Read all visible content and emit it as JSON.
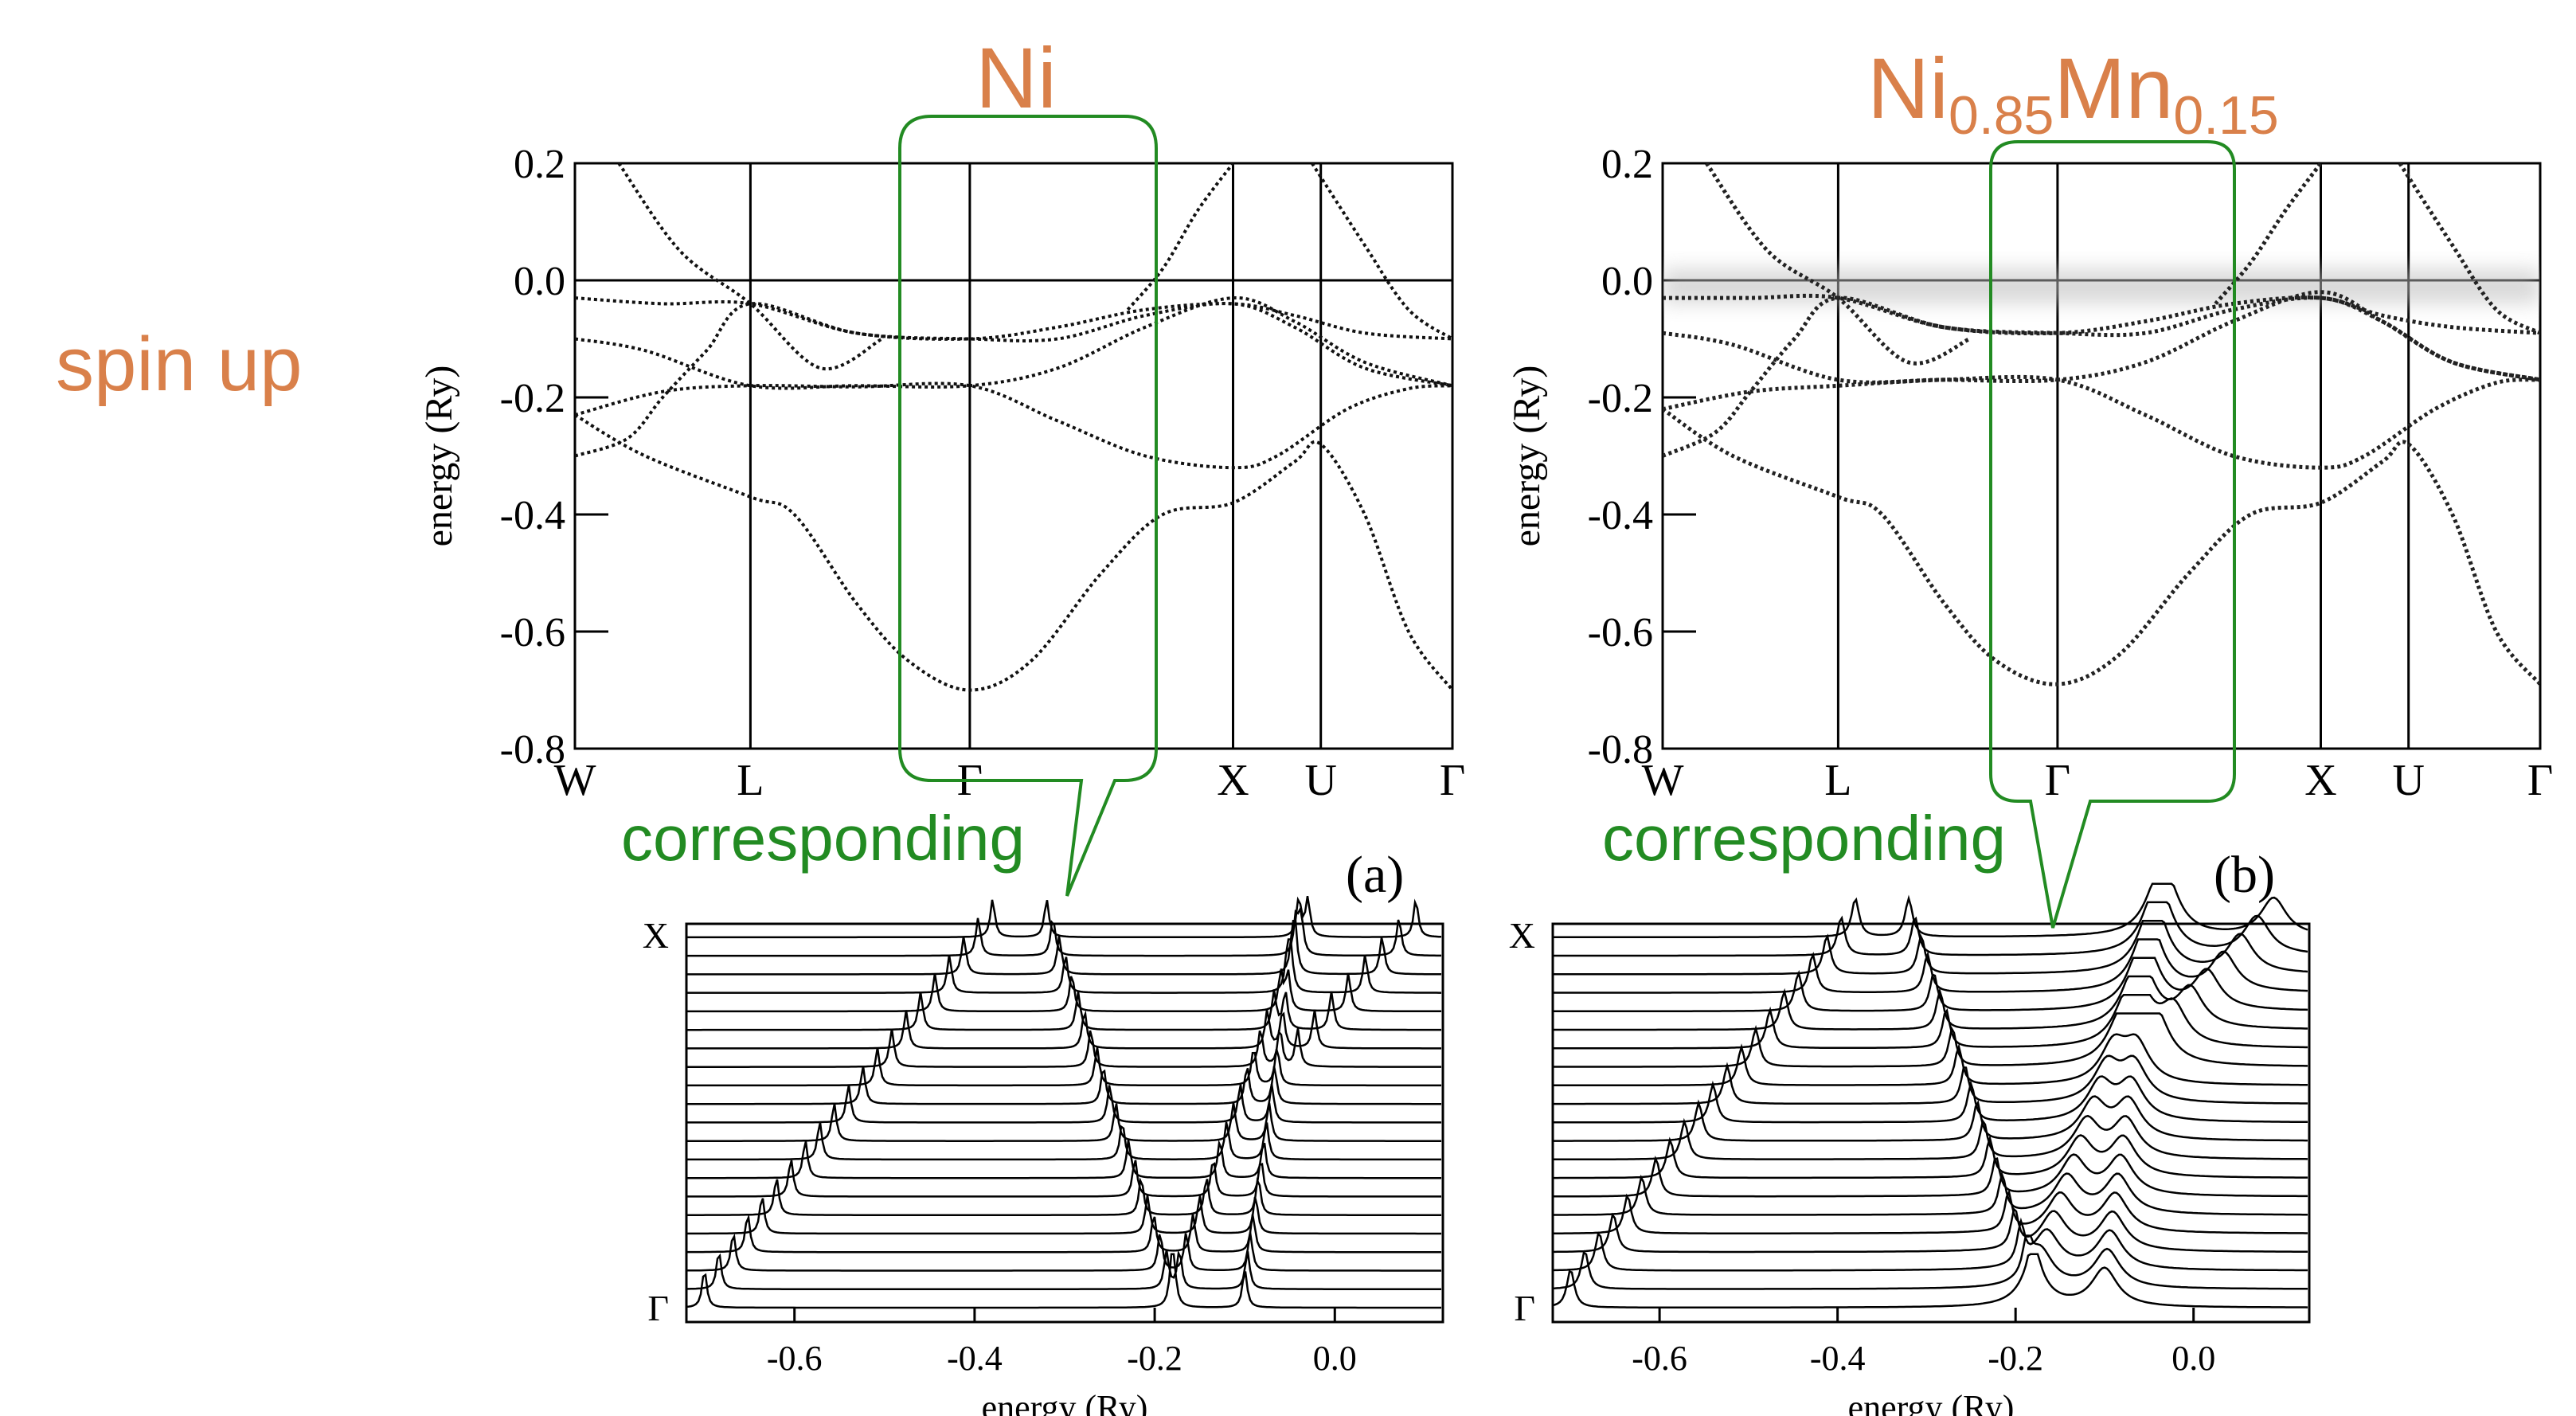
{
  "figure": {
    "row_label": "spin up",
    "accent_color": "#d9804a",
    "callout_color": "#228b22",
    "callout_text": "corresponding",
    "titles": {
      "ni": "Ni",
      "alloy_base1": "Ni",
      "alloy_sub1": "0.85",
      "alloy_base2": "Mn",
      "alloy_sub2": "0.15"
    },
    "panel_labels": {
      "a": "(a)",
      "b": "(b)"
    }
  },
  "chart_data": [
    {
      "id": "bands-ni",
      "type": "line",
      "title": "Ni",
      "panel": "(a)",
      "ylabel": "energy (Ry)",
      "ylim": [
        -0.8,
        0.2
      ],
      "yticks": [
        0.2,
        0.0,
        -0.2,
        -0.4,
        -0.6,
        -0.8
      ],
      "ytick_labels": [
        "0.2",
        "0.0",
        "-0.2",
        "-0.4",
        "-0.6",
        "-0.8"
      ],
      "kpoints": [
        {
          "label": "W",
          "x": 0.0
        },
        {
          "label": "L",
          "x": 0.2
        },
        {
          "label": "Γ",
          "x": 0.45
        },
        {
          "label": "X",
          "x": 0.75
        },
        {
          "label": "U",
          "x": 0.85
        },
        {
          "label": "Γ",
          "x": 1.0
        }
      ],
      "fermi_level": 0.0,
      "series": [
        {
          "values": [
            [
              0,
              -0.23
            ],
            [
              0.1,
              -0.19
            ],
            [
              0.2,
              -0.18
            ],
            [
              0.32,
              -0.182
            ],
            [
              0.45,
              -0.18
            ],
            [
              0.55,
              -0.24
            ],
            [
              0.65,
              -0.3
            ],
            [
              0.75,
              -0.32
            ],
            [
              0.8,
              -0.3
            ],
            [
              0.88,
              -0.22
            ],
            [
              0.95,
              -0.185
            ],
            [
              1,
              -0.18
            ]
          ]
        },
        {
          "values": [
            [
              0,
              -0.3
            ],
            [
              0.06,
              -0.27
            ],
            [
              0.1,
              -0.2
            ],
            [
              0.15,
              -0.12
            ],
            [
              0.2,
              -0.04
            ],
            [
              0.32,
              -0.09
            ],
            [
              0.45,
              -0.1
            ],
            [
              0.55,
              -0.08
            ],
            [
              0.65,
              -0.05
            ],
            [
              0.75,
              -0.04
            ],
            [
              0.82,
              -0.06
            ],
            [
              0.9,
              -0.09
            ],
            [
              1,
              -0.1
            ]
          ]
        },
        {
          "values": [
            [
              0,
              -0.1
            ],
            [
              0.08,
              -0.12
            ],
            [
              0.2,
              -0.18
            ],
            [
              0.32,
              -0.18
            ],
            [
              0.45,
              -0.18
            ],
            [
              0.55,
              -0.15
            ],
            [
              0.65,
              -0.08
            ],
            [
              0.75,
              -0.03
            ],
            [
              0.82,
              -0.07
            ],
            [
              0.9,
              -0.14
            ],
            [
              1,
              -0.18
            ]
          ]
        },
        {
          "values": [
            [
              0,
              -0.03
            ],
            [
              0.1,
              -0.04
            ],
            [
              0.2,
              -0.04
            ],
            [
              0.32,
              -0.09
            ],
            [
              0.45,
              -0.1
            ],
            [
              0.55,
              -0.1
            ],
            [
              0.65,
              -0.06
            ],
            [
              0.75,
              -0.04
            ],
            [
              0.82,
              -0.08
            ],
            [
              0.9,
              -0.15
            ],
            [
              1,
              -0.18
            ]
          ]
        },
        {
          "values": [
            [
              0,
              -0.23
            ],
            [
              0.08,
              -0.3
            ],
            [
              0.2,
              -0.37
            ],
            [
              0.25,
              -0.4
            ],
            [
              0.32,
              -0.55
            ],
            [
              0.38,
              -0.65
            ],
            [
              0.45,
              -0.7
            ],
            [
              0.52,
              -0.65
            ],
            [
              0.6,
              -0.5
            ],
            [
              0.67,
              -0.4
            ],
            [
              0.75,
              -0.38
            ],
            [
              0.82,
              -0.31
            ],
            [
              0.85,
              -0.28
            ],
            [
              0.9,
              -0.4
            ],
            [
              0.95,
              -0.6
            ],
            [
              1,
              -0.7
            ]
          ]
        },
        {
          "values": [
            [
              0.05,
              0.2
            ],
            [
              0.12,
              0.05
            ],
            [
              0.2,
              -0.04
            ],
            [
              0.28,
              -0.15
            ],
            [
              0.35,
              -0.1
            ]
          ]
        },
        {
          "values": [
            [
              0.63,
              -0.05
            ],
            [
              0.67,
              0.02
            ],
            [
              0.71,
              0.12
            ],
            [
              0.75,
              0.2
            ]
          ]
        },
        {
          "values": [
            [
              0.84,
              0.2
            ],
            [
              0.9,
              0.06
            ],
            [
              0.95,
              -0.05
            ],
            [
              1,
              -0.1
            ]
          ]
        }
      ]
    },
    {
      "id": "bands-nimn",
      "type": "line",
      "title": "Ni0.85Mn0.15",
      "panel": "(b)",
      "ylabel": "energy (Ry)",
      "ylim": [
        -0.8,
        0.2
      ],
      "yticks": [
        0.2,
        0.0,
        -0.2,
        -0.4,
        -0.6,
        -0.8
      ],
      "ytick_labels": [
        "0.2",
        "0.0",
        "-0.2",
        "-0.4",
        "-0.6",
        "-0.8"
      ],
      "kpoints": [
        {
          "label": "W",
          "x": 0.0
        },
        {
          "label": "L",
          "x": 0.2
        },
        {
          "label": "Γ",
          "x": 0.45
        },
        {
          "label": "X",
          "x": 0.75
        },
        {
          "label": "U",
          "x": 0.85
        },
        {
          "label": "Γ",
          "x": 1.0
        }
      ],
      "fermi_level": 0.0,
      "broadening": "smeared bands near 0.0 Ry",
      "series": [
        {
          "values": [
            [
              0,
              -0.22
            ],
            [
              0.1,
              -0.19
            ],
            [
              0.2,
              -0.18
            ],
            [
              0.32,
              -0.17
            ],
            [
              0.45,
              -0.17
            ],
            [
              0.55,
              -0.23
            ],
            [
              0.65,
              -0.3
            ],
            [
              0.75,
              -0.32
            ],
            [
              0.8,
              -0.3
            ],
            [
              0.88,
              -0.22
            ],
            [
              0.95,
              -0.175
            ],
            [
              1,
              -0.17
            ]
          ]
        },
        {
          "values": [
            [
              0,
              -0.3
            ],
            [
              0.06,
              -0.26
            ],
            [
              0.1,
              -0.19
            ],
            [
              0.15,
              -0.1
            ],
            [
              0.2,
              -0.03
            ],
            [
              0.32,
              -0.08
            ],
            [
              0.45,
              -0.09
            ],
            [
              0.55,
              -0.07
            ],
            [
              0.65,
              -0.04
            ],
            [
              0.75,
              -0.03
            ],
            [
              0.82,
              -0.06
            ],
            [
              0.9,
              -0.08
            ],
            [
              1,
              -0.09
            ]
          ]
        },
        {
          "values": [
            [
              0,
              -0.09
            ],
            [
              0.08,
              -0.11
            ],
            [
              0.2,
              -0.17
            ],
            [
              0.32,
              -0.17
            ],
            [
              0.45,
              -0.17
            ],
            [
              0.55,
              -0.14
            ],
            [
              0.65,
              -0.07
            ],
            [
              0.75,
              -0.02
            ],
            [
              0.82,
              -0.07
            ],
            [
              0.9,
              -0.14
            ],
            [
              1,
              -0.17
            ]
          ]
        },
        {
          "values": [
            [
              0,
              -0.03
            ],
            [
              0.1,
              -0.03
            ],
            [
              0.2,
              -0.03
            ],
            [
              0.32,
              -0.08
            ],
            [
              0.45,
              -0.09
            ],
            [
              0.55,
              -0.09
            ],
            [
              0.65,
              -0.05
            ],
            [
              0.75,
              -0.03
            ],
            [
              0.82,
              -0.07
            ],
            [
              0.9,
              -0.14
            ],
            [
              1,
              -0.17
            ]
          ]
        },
        {
          "values": [
            [
              0,
              -0.22
            ],
            [
              0.08,
              -0.3
            ],
            [
              0.2,
              -0.37
            ],
            [
              0.25,
              -0.4
            ],
            [
              0.32,
              -0.55
            ],
            [
              0.38,
              -0.65
            ],
            [
              0.45,
              -0.69
            ],
            [
              0.52,
              -0.64
            ],
            [
              0.6,
              -0.5
            ],
            [
              0.67,
              -0.4
            ],
            [
              0.75,
              -0.38
            ],
            [
              0.82,
              -0.31
            ],
            [
              0.85,
              -0.28
            ],
            [
              0.9,
              -0.4
            ],
            [
              0.95,
              -0.6
            ],
            [
              1,
              -0.69
            ]
          ]
        },
        {
          "values": [
            [
              0.05,
              0.2
            ],
            [
              0.12,
              0.05
            ],
            [
              0.2,
              -0.03
            ],
            [
              0.28,
              -0.14
            ],
            [
              0.35,
              -0.1
            ]
          ]
        },
        {
          "values": [
            [
              0.63,
              -0.04
            ],
            [
              0.67,
              0.03
            ],
            [
              0.71,
              0.12
            ],
            [
              0.75,
              0.2
            ]
          ]
        },
        {
          "values": [
            [
              0.84,
              0.2
            ],
            [
              0.9,
              0.06
            ],
            [
              0.95,
              -0.05
            ],
            [
              1,
              -0.09
            ]
          ]
        }
      ]
    },
    {
      "id": "spectral-ni",
      "type": "line",
      "xlabel": "energy (Ry)",
      "xlim": [
        -0.72,
        0.12
      ],
      "xticks": [
        -0.6,
        -0.4,
        -0.2,
        0.0
      ],
      "xtick_labels": [
        "-0.6",
        "-0.4",
        "-0.2",
        "0.0"
      ],
      "y_labels": {
        "top": "X",
        "bottom": "Γ"
      },
      "n_traces": 21,
      "peak_width_ry": 0.003
    },
    {
      "id": "spectral-nimn",
      "type": "line",
      "xlabel": "energy (Ry)",
      "xlim": [
        -0.72,
        0.13
      ],
      "xticks": [
        -0.6,
        -0.4,
        -0.2,
        0.0
      ],
      "xtick_labels": [
        "-0.6",
        "-0.4",
        "-0.2",
        "0.0"
      ],
      "y_labels": {
        "top": "X",
        "bottom": "Γ"
      },
      "n_traces": 21,
      "peak_width_ry": 0.005
    }
  ]
}
